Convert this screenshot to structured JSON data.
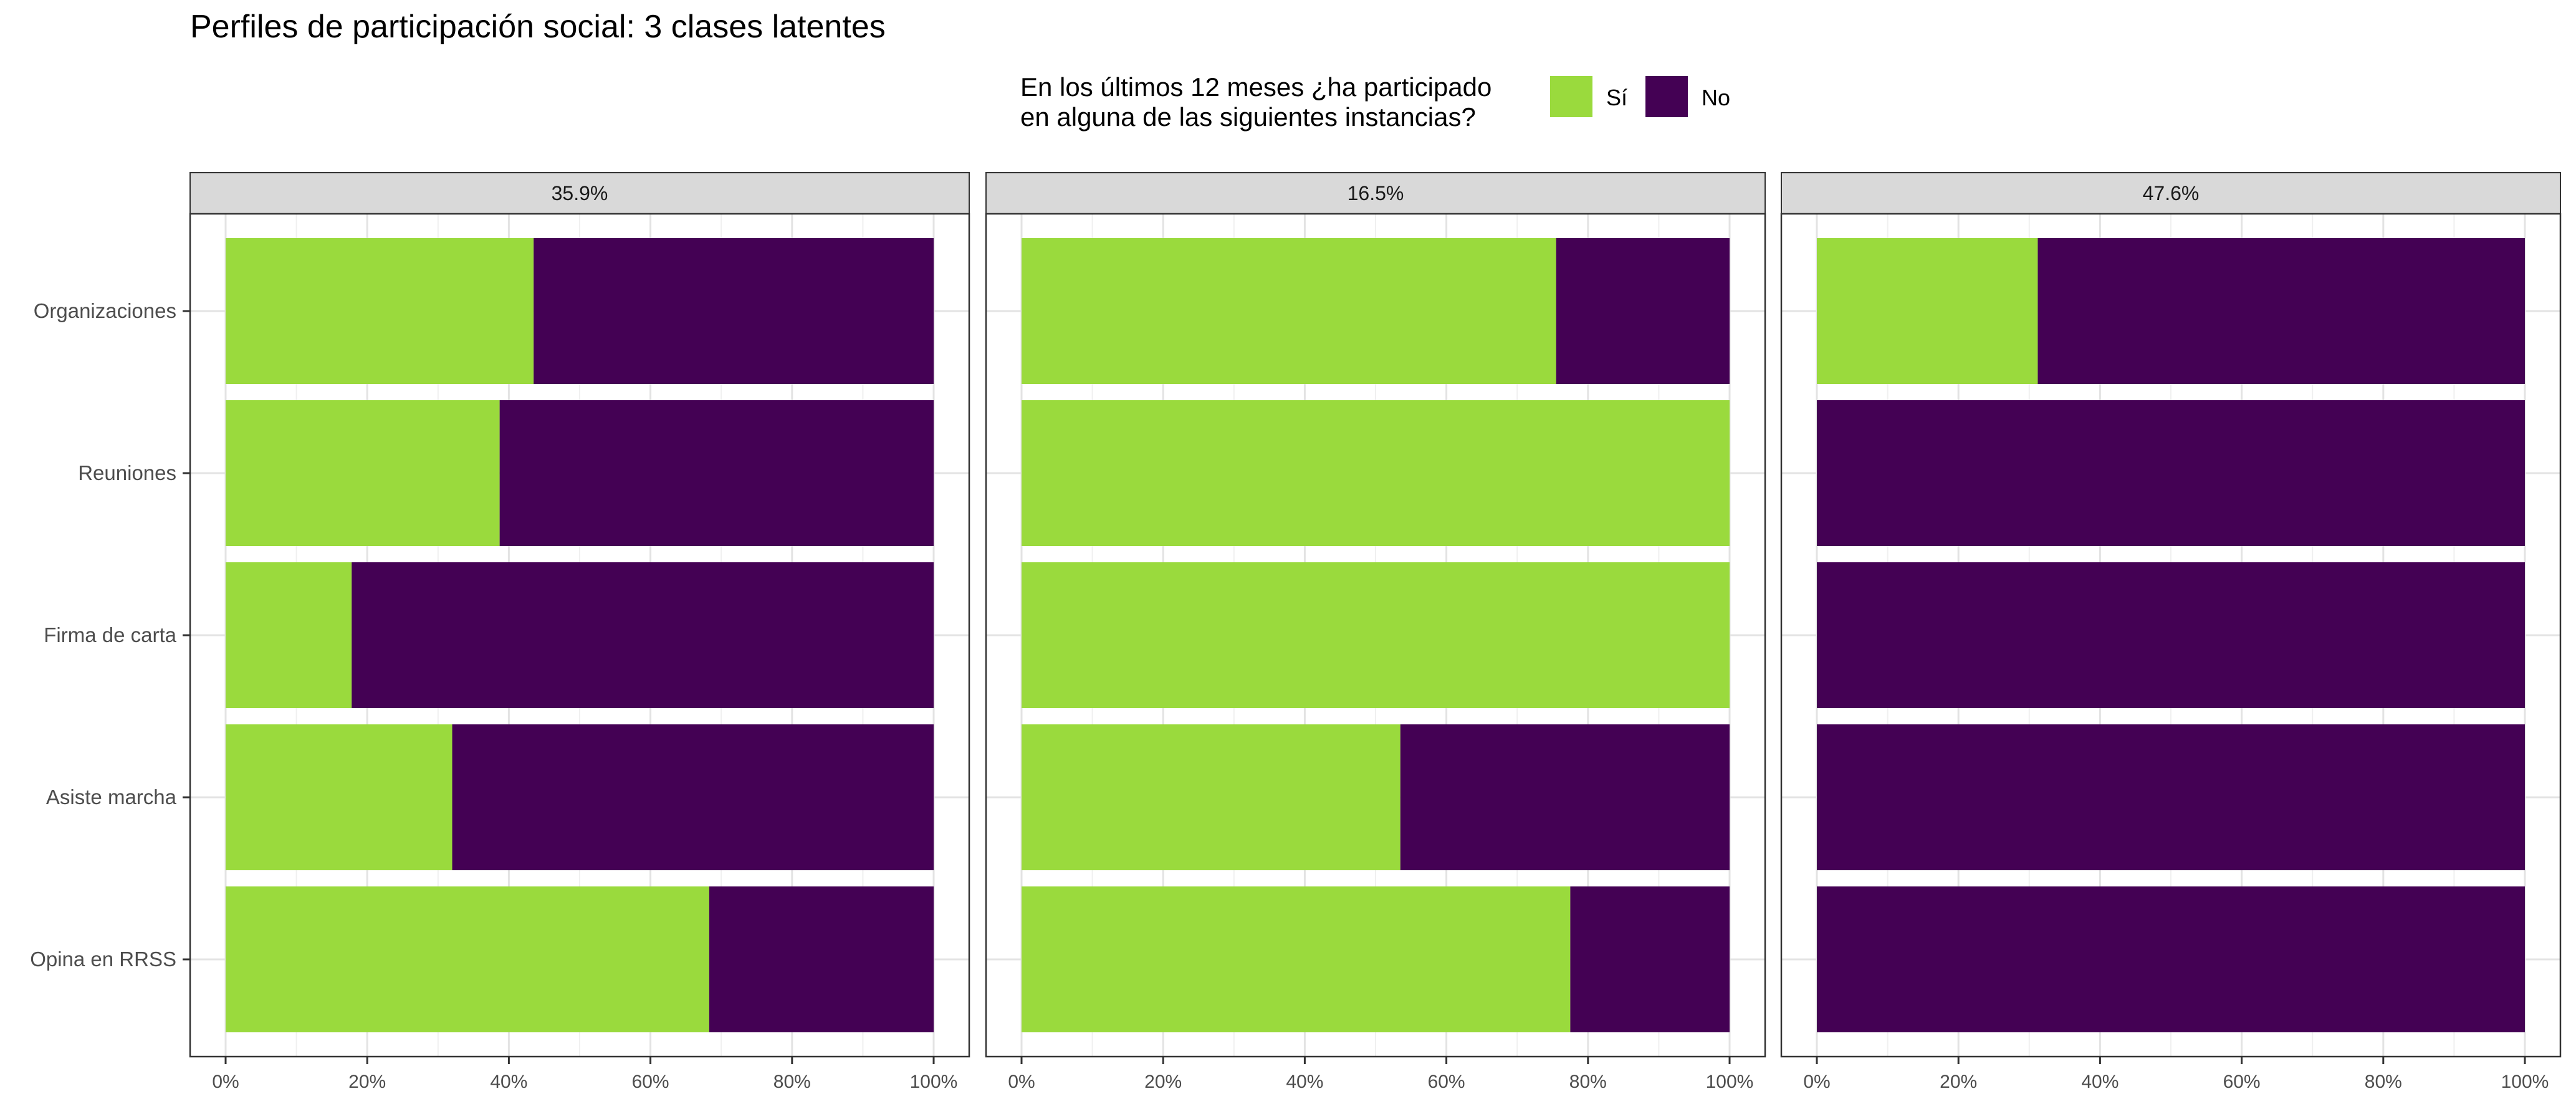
{
  "chart_data": {
    "type": "bar",
    "orientation": "horizontal",
    "stacked": true,
    "title": "Perfiles de participación social: 3 clases latentes",
    "legend": {
      "title_lines": [
        "En los últimos 12 meses ¿ha participado",
        "en alguna de las siguientes instancias?"
      ],
      "placement": "top",
      "entries": [
        {
          "label": "Sí",
          "color": "#9ADA3D"
        },
        {
          "label": "No",
          "color": "#440154"
        }
      ]
    },
    "categories": [
      "Organizaciones",
      "Reuniones",
      "Firma de carta",
      "Asiste marcha",
      "Opina en RRSS"
    ],
    "x_ticks": [
      "0%",
      "20%",
      "40%",
      "60%",
      "80%",
      "100%"
    ],
    "xlim": [
      0,
      1
    ],
    "grid": true,
    "panels": [
      {
        "label": "35.9%",
        "si": [
          0.435,
          0.387,
          0.178,
          0.32,
          0.683
        ]
      },
      {
        "label": "16.5%",
        "si": [
          0.755,
          1.0,
          1.0,
          0.535,
          0.775
        ]
      },
      {
        "label": "47.6%",
        "si": [
          0.312,
          0.0,
          0.0,
          0.0,
          0.0
        ]
      }
    ]
  }
}
